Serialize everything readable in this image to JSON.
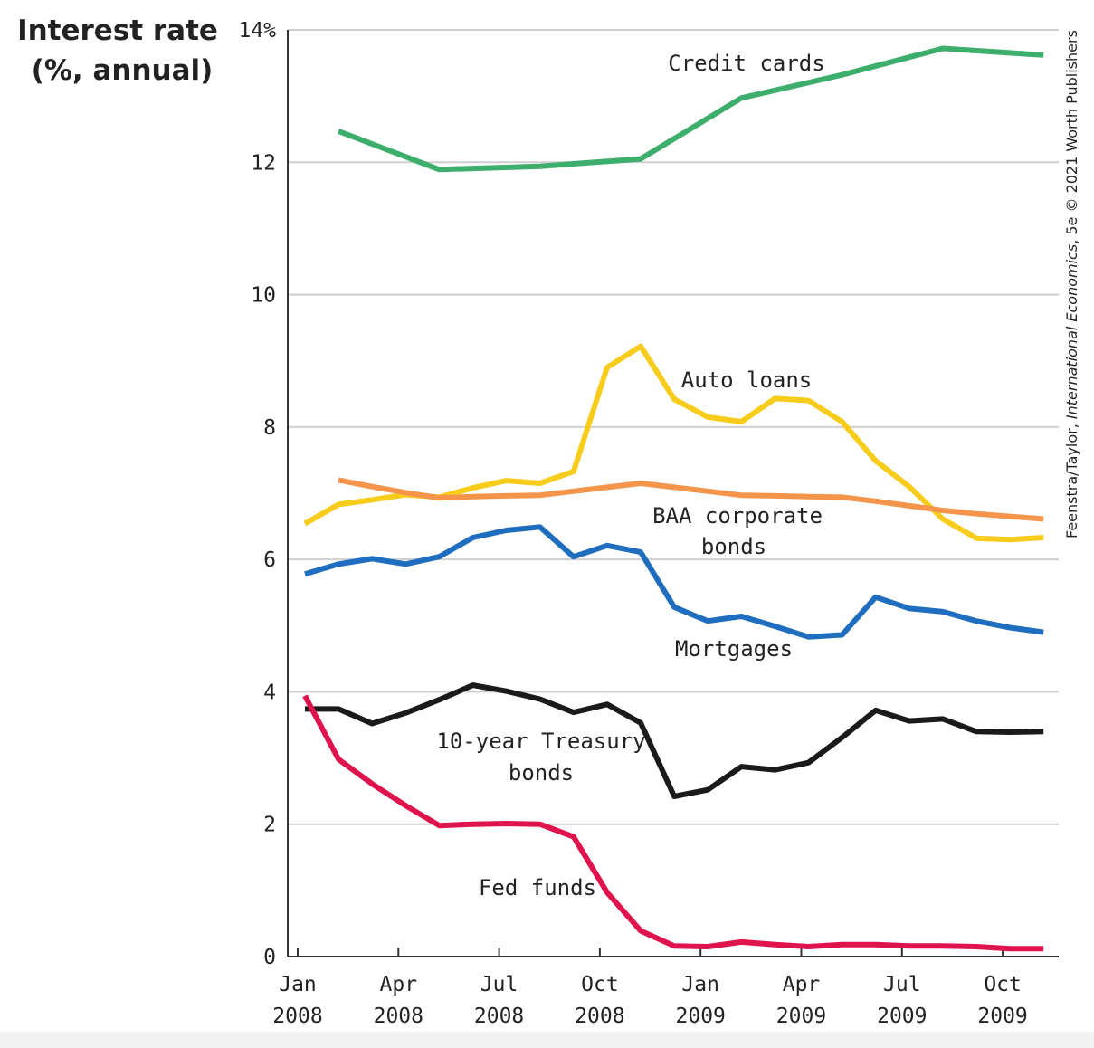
{
  "chart_data": {
    "type": "line",
    "ylabel_lines": [
      "Interest rate",
      "(%, annual)"
    ],
    "ylim": [
      0,
      14
    ],
    "yticks": [
      {
        "value": 0,
        "label": "0"
      },
      {
        "value": 2,
        "label": "2"
      },
      {
        "value": 4,
        "label": "4"
      },
      {
        "value": 6,
        "label": "6"
      },
      {
        "value": 8,
        "label": "8"
      },
      {
        "value": 10,
        "label": "10"
      },
      {
        "value": 12,
        "label": "12"
      },
      {
        "value": 14,
        "label": "14%"
      }
    ],
    "xticks": [
      {
        "index": 0,
        "month": "Jan",
        "year": "2008"
      },
      {
        "index": 3,
        "month": "Apr",
        "year": "2008"
      },
      {
        "index": 6,
        "month": "Jul",
        "year": "2008"
      },
      {
        "index": 9,
        "month": "Oct",
        "year": "2008"
      },
      {
        "index": 12,
        "month": "Jan",
        "year": "2009"
      },
      {
        "index": 15,
        "month": "Apr",
        "year": "2009"
      },
      {
        "index": 18,
        "month": "Jul",
        "year": "2009"
      },
      {
        "index": 21,
        "month": "Oct",
        "year": "2009"
      }
    ],
    "x_range": [
      "Jan 2008",
      "Dec 2009"
    ],
    "grid": true,
    "series": [
      {
        "name": "Credit cards",
        "label_lines": [
          "Credit cards"
        ],
        "color": "#3dae6b",
        "points": [
          [
            1,
            12.47
          ],
          [
            4,
            11.89
          ],
          [
            7,
            11.94
          ],
          [
            10,
            12.05
          ],
          [
            13,
            12.97
          ],
          [
            16,
            13.32
          ],
          [
            19,
            13.72
          ],
          [
            22,
            13.62
          ]
        ]
      },
      {
        "name": "Auto loans",
        "label_lines": [
          "Auto loans"
        ],
        "color": "#f7cc1b",
        "points": [
          [
            0,
            6.54
          ],
          [
            1,
            6.83
          ],
          [
            2,
            6.9
          ],
          [
            3,
            6.98
          ],
          [
            4,
            6.94
          ],
          [
            5,
            7.08
          ],
          [
            6,
            7.19
          ],
          [
            7,
            7.15
          ],
          [
            8,
            7.33
          ],
          [
            9,
            8.9
          ],
          [
            10,
            9.22
          ],
          [
            11,
            8.42
          ],
          [
            12,
            8.15
          ],
          [
            13,
            8.08
          ],
          [
            14,
            8.43
          ],
          [
            15,
            8.4
          ],
          [
            16,
            8.08
          ],
          [
            17,
            7.49
          ],
          [
            18,
            7.1
          ],
          [
            19,
            6.61
          ],
          [
            20,
            6.32
          ],
          [
            21,
            6.3
          ],
          [
            22,
            6.33
          ]
        ]
      },
      {
        "name": "BAA corporate bonds",
        "label_lines": [
          "BAA corporate",
          "bonds"
        ],
        "color": "#f5944b",
        "points": [
          [
            1,
            7.2
          ],
          [
            2,
            7.1
          ],
          [
            3,
            7.01
          ],
          [
            4,
            6.93
          ],
          [
            5,
            6.95
          ],
          [
            6,
            6.96
          ],
          [
            7,
            6.97
          ],
          [
            8,
            7.03
          ],
          [
            9,
            7.09
          ],
          [
            10,
            7.15
          ],
          [
            11,
            7.09
          ],
          [
            12,
            7.03
          ],
          [
            13,
            6.97
          ],
          [
            14,
            6.96
          ],
          [
            15,
            6.95
          ],
          [
            16,
            6.94
          ],
          [
            17,
            6.88
          ],
          [
            18,
            6.81
          ],
          [
            19,
            6.74
          ],
          [
            20,
            6.69
          ],
          [
            21,
            6.65
          ],
          [
            22,
            6.61
          ]
        ]
      },
      {
        "name": "Mortgages",
        "label_lines": [
          "Mortgages"
        ],
        "color": "#1f6dbf",
        "points": [
          [
            0,
            5.78
          ],
          [
            1,
            5.93
          ],
          [
            2,
            6.01
          ],
          [
            3,
            5.93
          ],
          [
            4,
            6.04
          ],
          [
            5,
            6.33
          ],
          [
            6,
            6.44
          ],
          [
            7,
            6.49
          ],
          [
            8,
            6.04
          ],
          [
            9,
            6.21
          ],
          [
            10,
            6.11
          ],
          [
            11,
            5.28
          ],
          [
            12,
            5.07
          ],
          [
            13,
            5.14
          ],
          [
            14,
            4.99
          ],
          [
            15,
            4.83
          ],
          [
            16,
            4.86
          ],
          [
            17,
            5.43
          ],
          [
            18,
            5.26
          ],
          [
            19,
            5.21
          ],
          [
            20,
            5.07
          ],
          [
            21,
            4.97
          ],
          [
            22,
            4.9
          ]
        ]
      },
      {
        "name": "10-year Treasury bonds",
        "label_lines": [
          "10-year Treasury",
          "bonds"
        ],
        "color": "#1a1a1a",
        "points": [
          [
            0,
            3.74
          ],
          [
            1,
            3.74
          ],
          [
            2,
            3.52
          ],
          [
            3,
            3.68
          ],
          [
            4,
            3.88
          ],
          [
            5,
            4.1
          ],
          [
            6,
            4.01
          ],
          [
            7,
            3.89
          ],
          [
            8,
            3.69
          ],
          [
            9,
            3.81
          ],
          [
            10,
            3.53
          ],
          [
            11,
            2.42
          ],
          [
            12,
            2.52
          ],
          [
            13,
            2.87
          ],
          [
            14,
            2.82
          ],
          [
            15,
            2.93
          ],
          [
            16,
            3.31
          ],
          [
            17,
            3.72
          ],
          [
            18,
            3.56
          ],
          [
            19,
            3.59
          ],
          [
            20,
            3.4
          ],
          [
            21,
            3.39
          ],
          [
            22,
            3.4
          ]
        ]
      },
      {
        "name": "Fed funds",
        "label_lines": [
          "Fed funds"
        ],
        "color": "#e0144c",
        "points": [
          [
            0,
            3.94
          ],
          [
            1,
            2.98
          ],
          [
            2,
            2.61
          ],
          [
            3,
            2.28
          ],
          [
            4,
            1.98
          ],
          [
            5,
            2.0
          ],
          [
            6,
            2.01
          ],
          [
            7,
            2.0
          ],
          [
            8,
            1.81
          ],
          [
            9,
            0.97
          ],
          [
            10,
            0.39
          ],
          [
            11,
            0.16
          ],
          [
            12,
            0.15
          ],
          [
            13,
            0.22
          ],
          [
            14,
            0.18
          ],
          [
            15,
            0.15
          ],
          [
            16,
            0.18
          ],
          [
            17,
            0.18
          ],
          [
            18,
            0.16
          ],
          [
            19,
            0.16
          ],
          [
            20,
            0.15
          ],
          [
            21,
            0.12
          ],
          [
            22,
            0.12
          ]
        ]
      }
    ]
  },
  "credit": {
    "prefix": "Feenstra/Taylor, ",
    "title": "International Economics",
    "suffix": ", 5e © 2021 Worth Publishers"
  }
}
